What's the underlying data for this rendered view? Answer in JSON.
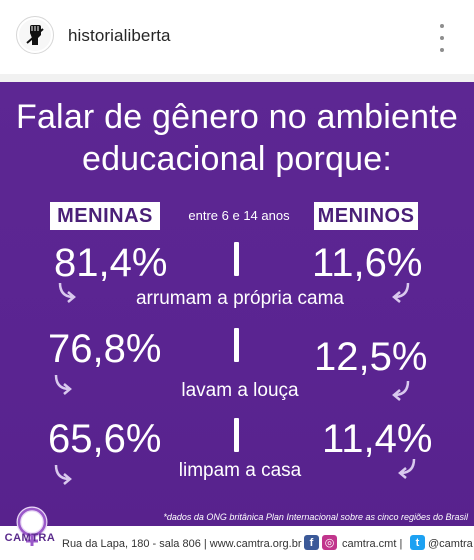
{
  "post": {
    "username": "historialiberta",
    "more_icon": "more-vertical-icon"
  },
  "infographic": {
    "title_line1": "Falar de gênero no ambiente",
    "title_line2": "educacional porque:",
    "label_girls": "MENINAS",
    "label_boys": "MENINOS",
    "age_range": "entre 6 e 14 anos",
    "rows": [
      {
        "girls": "81,4%",
        "boys": "11,6%",
        "activity": "arrumam a própria cama"
      },
      {
        "girls": "76,8%",
        "boys": "12,5%",
        "activity": "lavam a louça"
      },
      {
        "girls": "65,6%",
        "boys": "11,4%",
        "activity": "limpam a casa"
      }
    ],
    "footnote": "*dados da ONG britânica Plan Internacional sobre as cinco regiões do Brasil",
    "colors": {
      "background": "#5a2491",
      "label_text": "#4a1f78",
      "arrow": "#d9c9ee"
    }
  },
  "footer": {
    "logo_text": "CAMTRA",
    "address": "Rua da Lapa, 180 - sala 806 | www.camtra.org.br |",
    "handle1": "camtra.cmt |",
    "handle2": "@camtra"
  }
}
